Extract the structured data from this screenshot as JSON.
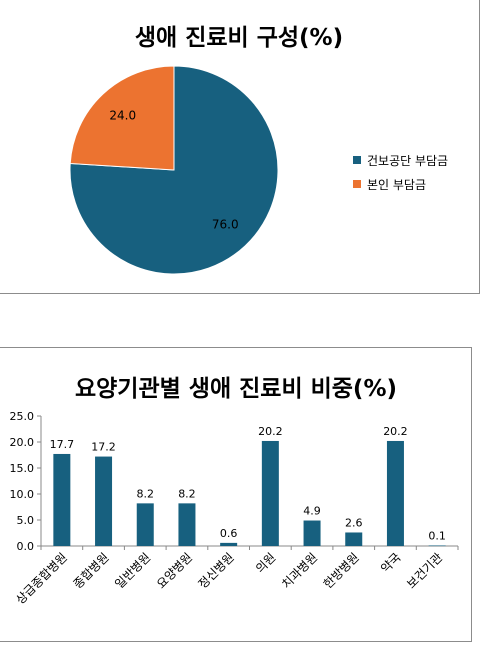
{
  "chart_data": [
    {
      "type": "pie",
      "title": "생애 진료비 구성(%)",
      "categories": [
        "건보공단 부담금",
        "본인 부담금"
      ],
      "values": [
        76.0,
        24.0
      ],
      "data_labels": [
        "76.0",
        "24.0"
      ],
      "colors": [
        "#17607f",
        "#ec7330"
      ],
      "legend": "right"
    },
    {
      "type": "bar",
      "title": "요양기관별 생애 진료비 비중(%)",
      "categories": [
        "상급종합병원",
        "종합병원",
        "일반병원",
        "요양병원",
        "정신병원",
        "의원",
        "치과병원",
        "한방병원",
        "약국",
        "보건기관"
      ],
      "values": [
        17.7,
        17.2,
        8.2,
        8.2,
        0.6,
        20.2,
        4.9,
        2.6,
        20.2,
        0.1
      ],
      "data_labels": [
        "17.7",
        "17.2",
        "8.2",
        "8.2",
        "0.6",
        "20.2",
        "4.9",
        "2.6",
        "20.2",
        "0.1"
      ],
      "yticks": [
        "0.0",
        "5.0",
        "10.0",
        "15.0",
        "20.0",
        "25.0"
      ],
      "ylim": [
        0,
        25
      ],
      "color": "#17607f",
      "grid": false
    }
  ]
}
